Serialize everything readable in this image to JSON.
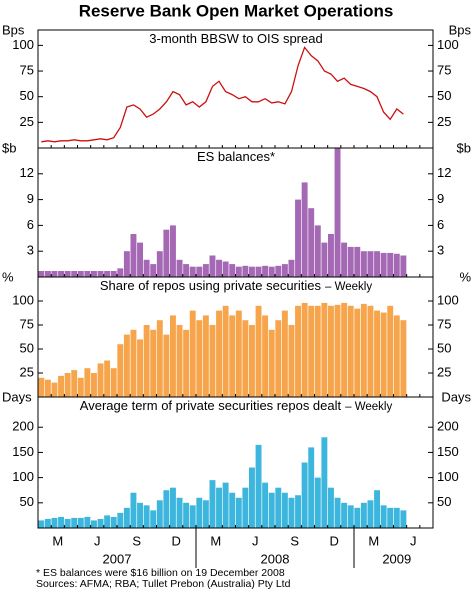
{
  "title": "Reserve Bank Open Market Operations",
  "categories": [
    null,
    null,
    "M",
    null,
    null,
    null,
    null,
    null,
    "J",
    null,
    null,
    null,
    null,
    null,
    "S",
    null,
    null,
    null,
    null,
    null,
    "D",
    null,
    null,
    null,
    null,
    null,
    "M",
    null,
    null,
    null,
    null,
    null,
    "J",
    null,
    null,
    null,
    null,
    null,
    "S",
    null,
    null,
    null,
    null,
    null,
    "D",
    null,
    null,
    null,
    null,
    null,
    "M",
    null,
    null,
    null,
    null,
    null,
    "J",
    null,
    null,
    null
  ],
  "year_labels": [
    "2007",
    "2008",
    "2009"
  ],
  "footnote": "*     ES balances were $16 billion on 19 December 2008",
  "sources": "Sources: AFMA; RBA; Tullet Prebon (Australia) Pty Ltd",
  "chart_data": [
    {
      "type": "line",
      "title": "3-month BBSW to OIS spread",
      "unit": "Bps",
      "color": "#cc1111",
      "ylim": [
        0,
        115
      ],
      "yticks": [
        25,
        50,
        75,
        100
      ],
      "values": [
        6,
        7,
        6,
        7,
        7,
        8,
        7,
        7,
        8,
        9,
        8,
        10,
        20,
        40,
        42,
        38,
        30,
        33,
        38,
        45,
        55,
        52,
        42,
        45,
        40,
        45,
        60,
        65,
        55,
        52,
        48,
        50,
        45,
        45,
        48,
        44,
        45,
        43,
        55,
        80,
        98,
        90,
        85,
        75,
        72,
        65,
        68,
        62,
        60,
        58,
        55,
        50,
        35,
        28,
        38,
        33,
        null,
        null,
        null,
        null
      ]
    },
    {
      "type": "bar",
      "title": "ES balances*",
      "unit": "$b",
      "color": "#a468b4",
      "ylim": [
        0,
        15
      ],
      "yticks": [
        3,
        6,
        9,
        12
      ],
      "values": [
        0.7,
        0.7,
        0.7,
        0.7,
        0.7,
        0.7,
        0.7,
        0.7,
        0.7,
        0.7,
        0.7,
        0.7,
        1,
        3,
        5,
        4,
        2,
        1.5,
        3,
        5.5,
        6,
        2,
        1.5,
        1.2,
        1.2,
        1.5,
        2.5,
        2,
        1.8,
        1.5,
        1.2,
        1.3,
        1.2,
        1.2,
        1.3,
        1.2,
        1.3,
        1.5,
        2,
        9,
        11,
        8,
        6,
        4,
        5,
        15,
        4,
        3.5,
        3.5,
        3,
        3,
        3,
        2.8,
        2.8,
        2.7,
        2.5,
        null,
        null,
        null,
        null
      ]
    },
    {
      "type": "bar",
      "title": "Share of repos using private securities",
      "frequency": "– Weekly",
      "unit": "%",
      "color": "#f7a54c",
      "ylim": [
        0,
        125
      ],
      "yticks": [
        25,
        50,
        75,
        100
      ],
      "values": [
        20,
        18,
        15,
        22,
        25,
        28,
        20,
        30,
        25,
        35,
        38,
        30,
        55,
        65,
        70,
        60,
        75,
        70,
        80,
        65,
        85,
        75,
        70,
        90,
        80,
        85,
        75,
        90,
        95,
        85,
        90,
        80,
        75,
        95,
        85,
        70,
        80,
        90,
        75,
        95,
        98,
        95,
        95,
        98,
        95,
        96,
        98,
        95,
        92,
        97,
        95,
        90,
        88,
        95,
        85,
        80,
        null,
        null,
        null,
        null
      ]
    },
    {
      "type": "bar",
      "title": "Average term of private securities repos dealt",
      "frequency": "– Weekly",
      "unit": "Days",
      "color": "#3db6de",
      "ylim": [
        0,
        260
      ],
      "yticks": [
        50,
        100,
        150,
        200
      ],
      "values": [
        15,
        18,
        20,
        22,
        18,
        20,
        20,
        22,
        15,
        18,
        25,
        22,
        30,
        40,
        70,
        50,
        45,
        35,
        55,
        75,
        80,
        60,
        50,
        45,
        60,
        55,
        95,
        80,
        90,
        70,
        60,
        80,
        120,
        165,
        90,
        70,
        80,
        70,
        60,
        65,
        130,
        160,
        100,
        180,
        80,
        60,
        50,
        45,
        40,
        50,
        55,
        75,
        45,
        40,
        40,
        35,
        null,
        null,
        null,
        null
      ]
    }
  ]
}
